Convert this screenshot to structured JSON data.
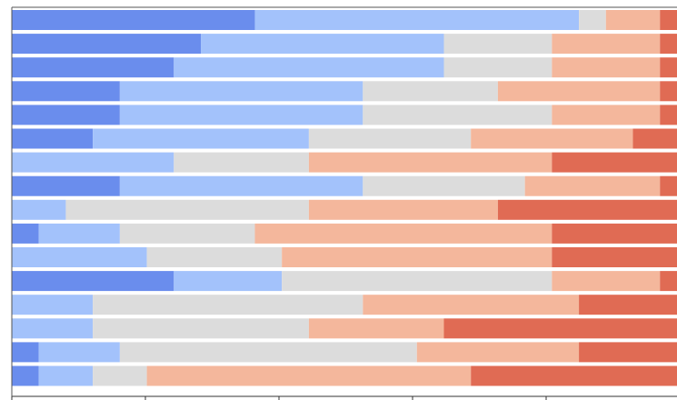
{
  "chart_data": {
    "type": "bar",
    "orientation": "horizontal",
    "stacked": true,
    "normalized": true,
    "xlim": [
      0,
      100
    ],
    "grid": false,
    "legend": "none",
    "categories": [
      "",
      "",
      "",
      "",
      "",
      "",
      "",
      "",
      "",
      "",
      "",
      "",
      "",
      "",
      "",
      ""
    ],
    "series": [
      {
        "color": "#6a8ded",
        "values": [
          45,
          35,
          30,
          20,
          20,
          15,
          0,
          20,
          0,
          5,
          0,
          30,
          0,
          0,
          5,
          5
        ]
      },
      {
        "color": "#a3c2fb",
        "values": [
          60,
          45,
          50,
          45,
          45,
          40,
          30,
          45,
          10,
          15,
          25,
          20,
          15,
          15,
          15,
          10
        ]
      },
      {
        "color": "#dcdcdc",
        "values": [
          5,
          20,
          20,
          25,
          35,
          30,
          25,
          30,
          45,
          25,
          25,
          50,
          50,
          40,
          55,
          10
        ]
      },
      {
        "color": "#f4b79c",
        "values": [
          10,
          20,
          20,
          30,
          20,
          30,
          45,
          25,
          35,
          55,
          50,
          20,
          40,
          25,
          30,
          60
        ]
      },
      {
        "color": "#e06b54",
        "values": [
          4,
          4,
          4,
          4,
          4,
          9,
          24,
          4,
          34,
          24,
          24,
          4,
          19,
          44,
          19,
          39
        ]
      }
    ],
    "xticks_visible": 5
  }
}
